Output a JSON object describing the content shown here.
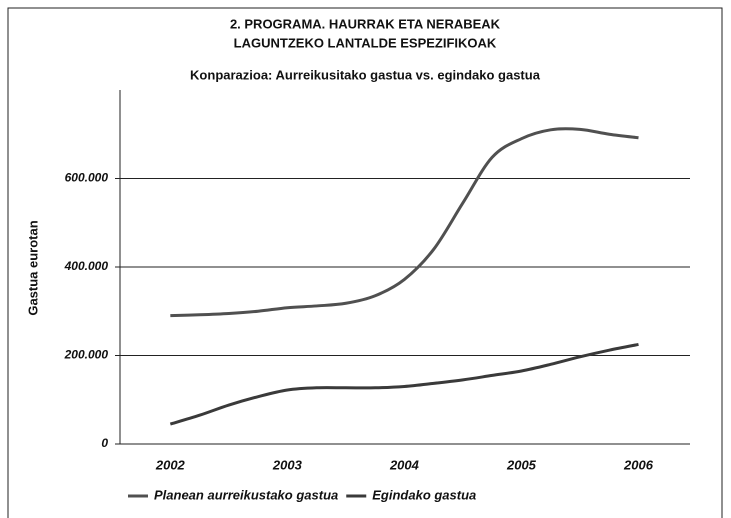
{
  "chart_data": {
    "type": "line",
    "title": "2. PROGRAMA. HAURRAK ETA NERABEAK",
    "title_line2": "LAGUNTZEKO LANTALDE ESPEZIFIKOAK",
    "subtitle": "Konparazioa: Aurreikusitako gastua vs. egindako gastua",
    "ylabel": "Gastua eurotan",
    "x": [
      2002,
      2002.25,
      2002.5,
      2002.75,
      2003,
      2003.25,
      2003.5,
      2003.75,
      2004,
      2004.25,
      2004.5,
      2004.75,
      2005,
      2005.25,
      2005.5,
      2005.75,
      2006
    ],
    "series": [
      {
        "name": "Planean aurreikustako gastua",
        "color": "#505050",
        "values": [
          290000,
          292000,
          295000,
          300000,
          308000,
          312000,
          318000,
          335000,
          372000,
          440000,
          545000,
          648000,
          690000,
          710000,
          711000,
          700000,
          692000
        ]
      },
      {
        "name": "Egindako gastua",
        "color": "#3a3a3a",
        "values": [
          45000,
          65000,
          88000,
          107000,
          122000,
          127000,
          127000,
          127000,
          130000,
          137000,
          145000,
          155000,
          165000,
          180000,
          197000,
          212000,
          225000
        ]
      }
    ],
    "xlim": [
      2001.57,
      2006.44
    ],
    "xticks": [
      2002,
      2003,
      2004,
      2005,
      2006
    ],
    "ylim": [
      0,
      800000
    ],
    "yticks": [
      0,
      {
        "value": 200000,
        "label": "200.000"
      },
      {
        "value": 400000,
        "label": "400.000"
      },
      {
        "value": 600000,
        "label": "600.000"
      }
    ],
    "grid": true,
    "legend": "bottom"
  }
}
